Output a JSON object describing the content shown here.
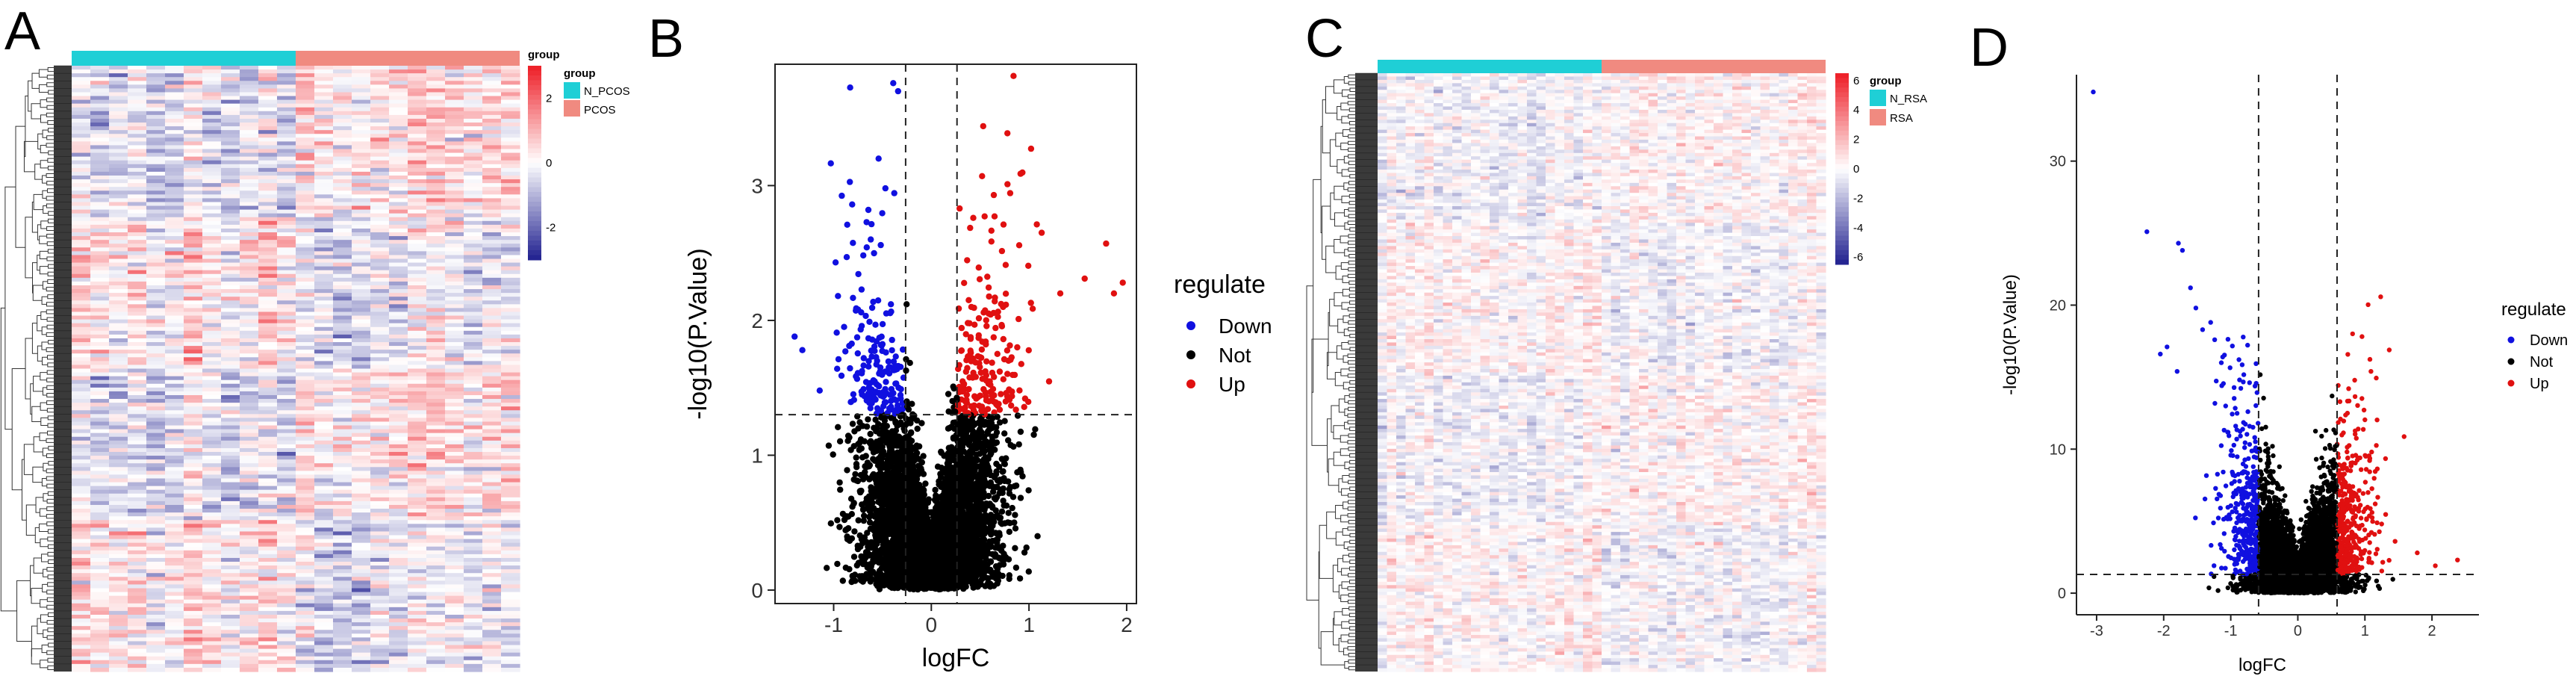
{
  "panels": {
    "A": "A",
    "B": "B",
    "C": "C",
    "D": "D"
  },
  "chart_data": [
    {
      "panel": "A",
      "type": "heatmap",
      "annotation_title": "group",
      "groups": [
        "N_PCOS",
        "PCOS"
      ],
      "group_colors": [
        "#1fcfd6",
        "#f08a80"
      ],
      "columns_per_group": [
        12,
        12
      ],
      "color_scale_title": "group",
      "color_scale_ticks": [
        "2",
        "0",
        "-2"
      ],
      "color_scale_values": [
        2,
        0,
        -2
      ],
      "color_scale_range": [
        -3,
        3
      ],
      "colors": {
        "low": "#1f1f8f",
        "mid": "#ffffff",
        "high": "#ee1c25"
      }
    },
    {
      "panel": "B",
      "type": "scatter",
      "xlabel": "logFC",
      "ylabel": "-log10(P.Value)",
      "xlim": [
        -1.6,
        2.1
      ],
      "ylim": [
        -0.1,
        3.9
      ],
      "xticks": [
        -1,
        0,
        1,
        2
      ],
      "yticks": [
        0,
        1,
        2,
        3
      ],
      "xtick_labels": [
        "-1",
        "0",
        "1",
        "2"
      ],
      "ytick_labels": [
        "0",
        "1",
        "2",
        "3"
      ],
      "vlines": [
        -0.263,
        0.263
      ],
      "hline": 1.301,
      "legend_title": "regulate",
      "legend": [
        {
          "label": "Down",
          "color": "#1010e0"
        },
        {
          "label": "Not",
          "color": "#000000"
        },
        {
          "label": "Up",
          "color": "#e01010"
        }
      ],
      "series": [
        {
          "name": "Up",
          "color": "#e01010",
          "points": [
            [
              1.96,
              2.28
            ],
            [
              1.87,
              2.2
            ],
            [
              1.79,
              2.57
            ],
            [
              1.57,
              2.31
            ],
            [
              1.32,
              2.2
            ],
            [
              1.02,
              2.13
            ],
            [
              1.13,
              2.65
            ],
            [
              0.78,
              3.01
            ],
            [
              0.64,
              2.93
            ],
            [
              0.52,
              3.07
            ],
            [
              0.29,
              2.83
            ],
            [
              0.41,
              2.1
            ],
            [
              0.88,
              1.8
            ],
            [
              0.7,
              1.62
            ],
            [
              0.96,
              1.42
            ]
          ]
        },
        {
          "name": "Down",
          "color": "#1010e0",
          "points": [
            [
              -1.4,
              1.88
            ],
            [
              -1.32,
              1.78
            ],
            [
              -0.98,
              2.43
            ],
            [
              -0.81,
              2.86
            ],
            [
              -0.54,
              3.2
            ],
            [
              -0.39,
              3.76
            ],
            [
              -0.34,
              3.7
            ],
            [
              -0.62,
              2.6
            ],
            [
              -0.92,
              1.59
            ],
            [
              -0.58,
              1.42
            ],
            [
              -0.47,
              2.98
            ],
            [
              -0.75,
              2.08
            ]
          ]
        }
      ]
    },
    {
      "panel": "C",
      "type": "heatmap",
      "annotation_title": "group",
      "groups": [
        "N_RSA",
        "RSA"
      ],
      "group_colors": [
        "#1fcfd6",
        "#f08a80"
      ],
      "columns_per_group": [
        24,
        24
      ],
      "color_scale_title": "group",
      "color_scale_ticks": [
        "6",
        "4",
        "2",
        "0",
        "-2",
        "-4",
        "-6"
      ],
      "color_scale_values": [
        6,
        4,
        2,
        0,
        -2,
        -4,
        -6
      ],
      "color_scale_range": [
        -6.5,
        6.5
      ],
      "colors": {
        "low": "#1f1f8f",
        "mid": "#ffffff",
        "high": "#ee1c25"
      }
    },
    {
      "panel": "D",
      "type": "scatter",
      "xlabel": "logFC",
      "ylabel": "-log10(P.Value)",
      "xlim": [
        -3.3,
        2.7
      ],
      "ylim": [
        -1.5,
        36
      ],
      "xticks": [
        -3,
        -2,
        -1,
        0,
        1,
        2
      ],
      "yticks": [
        0,
        10,
        20,
        30
      ],
      "xtick_labels": [
        "-3",
        "-2",
        "-1",
        "0",
        "1",
        "2"
      ],
      "ytick_labels": [
        "0",
        "10",
        "20",
        "30"
      ],
      "vlines": [
        -0.585,
        0.585
      ],
      "hline": 1.301,
      "legend_title": "regulate",
      "legend": [
        {
          "label": "Down",
          "color": "#1010e0"
        },
        {
          "label": "Not",
          "color": "#000000"
        },
        {
          "label": "Up",
          "color": "#e01010"
        }
      ],
      "series": [
        {
          "name": "Down",
          "color": "#1010e0",
          "points": [
            [
              -3.05,
              34.8
            ],
            [
              -2.25,
              25.1
            ],
            [
              -1.78,
              24.3
            ],
            [
              -1.72,
              23.8
            ],
            [
              -1.6,
              21.2
            ],
            [
              -1.52,
              19.8
            ],
            [
              -1.42,
              18.3
            ],
            [
              -1.95,
              17.1
            ],
            [
              -2.05,
              16.6
            ],
            [
              -1.8,
              15.4
            ],
            [
              -1.3,
              18.8
            ],
            [
              -1.24,
              17.6
            ],
            [
              -1.12,
              16.4
            ]
          ]
        },
        {
          "name": "Up",
          "color": "#e01010",
          "points": [
            [
              2.38,
              2.3
            ],
            [
              2.05,
              1.9
            ],
            [
              1.78,
              2.8
            ],
            [
              1.45,
              3.6
            ],
            [
              1.25,
              4.8
            ],
            [
              1.1,
              9.8
            ],
            [
              1.02,
              8.6
            ],
            [
              0.9,
              11.4
            ],
            [
              0.82,
              7.4
            ],
            [
              0.74,
              12.5
            ]
          ]
        }
      ]
    }
  ]
}
